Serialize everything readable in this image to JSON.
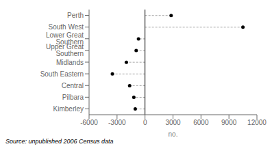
{
  "chart_data": {
    "type": "lollipop",
    "orientation": "horizontal",
    "categories": [
      "Perth",
      "South West",
      "Lower Great Southern",
      "Upper Great Southern",
      "Midlands",
      "South Eastern",
      "Central",
      "Pilbara",
      "Kimberley"
    ],
    "values": [
      2800,
      10500,
      -700,
      -950,
      -2000,
      -3500,
      -1650,
      -1200,
      -1050
    ],
    "color": "#000000",
    "xlim": [
      -6000,
      12000
    ],
    "xticks": [
      -6000,
      -3000,
      0,
      3000,
      6000,
      9000,
      12000
    ],
    "xlabel": "no.",
    "annotations": [
      "Source: unpublished 2006 Census data"
    ]
  }
}
